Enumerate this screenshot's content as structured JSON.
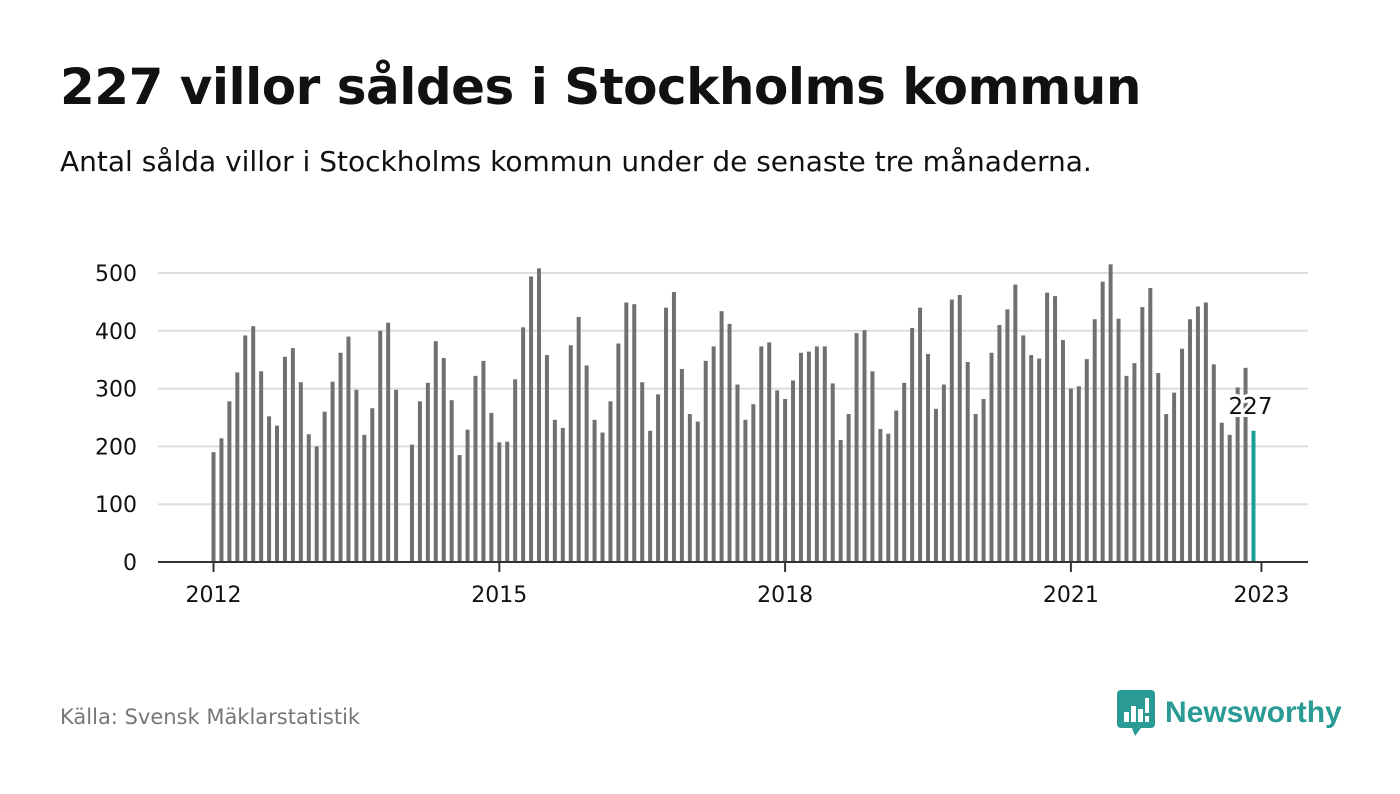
{
  "header": {
    "title": "227 villor såldes i Stockholms kommun",
    "subtitle": "Antal sålda villor i Stockholms kommun under de senaste tre månaderna."
  },
  "footer": {
    "source": "Källa: Svensk Mäklarstatistik",
    "brand": "Newsworthy"
  },
  "colors": {
    "bar": "#707073",
    "highlight": "#1a9e96",
    "brand": "#2a9a94",
    "grid": "#dddddd",
    "axis": "#333333",
    "text": "#111111",
    "muted": "#777777"
  },
  "icons": {
    "brand": "newsworthy-bar-chart-icon"
  },
  "chart_data": {
    "type": "bar",
    "title": "227 villor såldes i Stockholms kommun",
    "subtitle": "Antal sålda villor i Stockholms kommun under de senaste tre månaderna.",
    "xlabel": "",
    "ylabel": "",
    "ylim": [
      0,
      520
    ],
    "yticks": [
      0,
      100,
      200,
      300,
      400,
      500
    ],
    "grid": true,
    "legend": "none",
    "x_start": "2012-01",
    "x_end": "2023-01",
    "xticks": [
      "2012",
      "2015",
      "2018",
      "2021",
      "2023"
    ],
    "highlight_label": "227",
    "series": [
      {
        "values": [
          190,
          214,
          278,
          328,
          392,
          408,
          330,
          252,
          236,
          355,
          370,
          311,
          221,
          200,
          260,
          312,
          362,
          390,
          298,
          220,
          266,
          400,
          414,
          298,
          null,
          203,
          278,
          310,
          382,
          353,
          280,
          185,
          229,
          322,
          348,
          258,
          207,
          208,
          316,
          406,
          494,
          508,
          358,
          246,
          232,
          375,
          424,
          340,
          246,
          224,
          278,
          378,
          449,
          446,
          311,
          227,
          290,
          440,
          467,
          334,
          256,
          243,
          348,
          373,
          434,
          412,
          307,
          246,
          273,
          373,
          380,
          297,
          282,
          314,
          362,
          364,
          373,
          373,
          309,
          211,
          256,
          396,
          401,
          330,
          230,
          222,
          262,
          310,
          405,
          440,
          360,
          265,
          307,
          454,
          462,
          346,
          256,
          282,
          362,
          410,
          437,
          480,
          392,
          358,
          352,
          466,
          460,
          384,
          300,
          304,
          351,
          420,
          485,
          515,
          421,
          322,
          344,
          441,
          474,
          327,
          256,
          293,
          369,
          420,
          442,
          449,
          342,
          241,
          220,
          302,
          336,
          227
        ]
      }
    ]
  }
}
